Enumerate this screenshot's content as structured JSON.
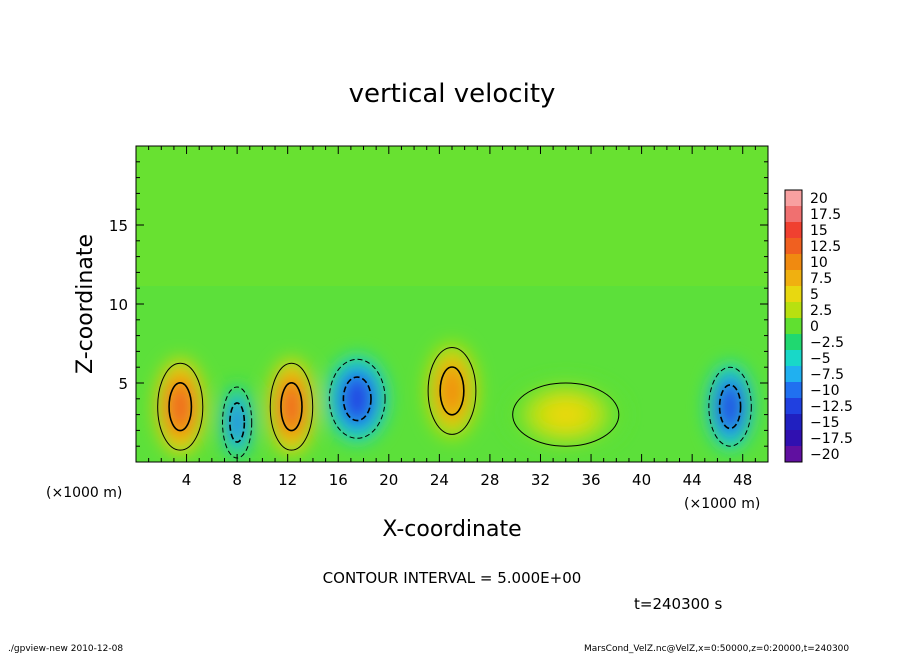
{
  "chart_data": {
    "type": "heatmap",
    "title": "vertical velocity",
    "xlabel": "X-coordinate",
    "ylabel": "Z-coordinate",
    "x_unit_left": "(×1000 m)",
    "x_unit_right": "(×1000 m)",
    "xlim": [
      0,
      50
    ],
    "ylim": [
      0,
      20
    ],
    "x_ticks": [
      4,
      8,
      12,
      16,
      20,
      24,
      28,
      32,
      36,
      40,
      44,
      48
    ],
    "y_ticks": [
      5,
      10,
      15
    ],
    "colorbar": {
      "labels": [
        "20",
        "17.5",
        "15",
        "12.5",
        "10",
        "7.5",
        "5",
        "2.5",
        "0",
        "−2.5",
        "−5",
        "−7.5",
        "−10",
        "−12.5",
        "−15",
        "−17.5",
        "−20"
      ],
      "colors": [
        "#f8a0a0",
        "#f07070",
        "#f04030",
        "#f06020",
        "#f08a10",
        "#f0b010",
        "#e8d810",
        "#b8e010",
        "#60e030",
        "#20d870",
        "#18d8c8",
        "#20b0f0",
        "#2070f0",
        "#2040e0",
        "#2020c0",
        "#3010b0",
        "#6010a0"
      ]
    },
    "cells": [
      {
        "x": 3.5,
        "z": 3.5,
        "w": 3.4,
        "h": 5.5,
        "value": 12.5
      },
      {
        "x": 8.0,
        "z": 2.5,
        "w": 2.2,
        "h": 4.5,
        "value": -10
      },
      {
        "x": 12.3,
        "z": 3.5,
        "w": 3.2,
        "h": 5.5,
        "value": 12.5
      },
      {
        "x": 17.5,
        "z": 4.0,
        "w": 4.2,
        "h": 5.0,
        "value": -12.5
      },
      {
        "x": 25.0,
        "z": 4.5,
        "w": 3.6,
        "h": 5.5,
        "value": 10
      },
      {
        "x": 34.0,
        "z": 3.0,
        "w": 8.0,
        "h": 4.0,
        "value": 5
      },
      {
        "x": 47.0,
        "z": 3.5,
        "w": 3.2,
        "h": 5.0,
        "value": -12.5
      }
    ],
    "annotation": "CONTOUR INTERVAL = 5.000E+00",
    "time_label": "t=240300 s"
  },
  "footer": {
    "left": "./gpview-new 2010-12-08",
    "right": "MarsCond_VelZ.nc@VelZ,x=0:50000,z=0:20000,t=240300"
  }
}
